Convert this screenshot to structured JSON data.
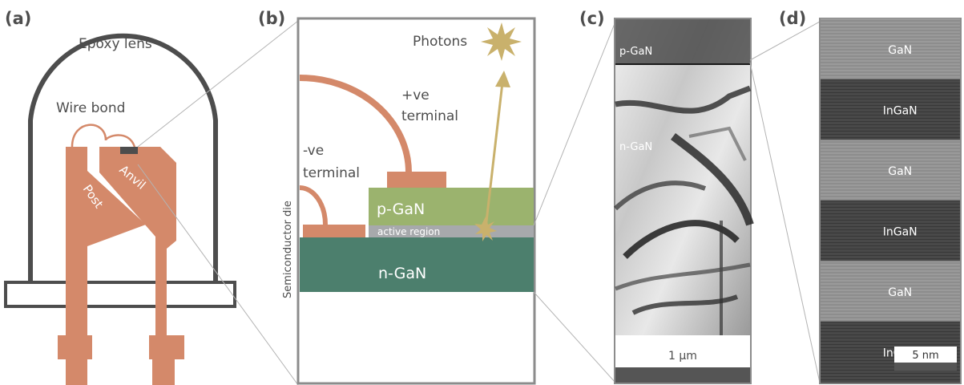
{
  "panel_labels": {
    "a": "(a)",
    "b": "(b)",
    "c": "(c)",
    "d": "(d)"
  },
  "panel_a": {
    "epoxy_lens": "Epoxy lens",
    "wire_bond": "Wire bond",
    "post": "Post",
    "anvil": "Anvil"
  },
  "panel_b": {
    "photons": "Photons",
    "pos_terminal_1": "+ve",
    "pos_terminal_2": "terminal",
    "neg_terminal_1": "-ve",
    "neg_terminal_2": "terminal",
    "p_gan": "p-GaN",
    "active_region": "active region",
    "n_gan": "n-GaN",
    "semiconductor_die": "Semiconductor die"
  },
  "panel_c": {
    "p_gan": "p-GaN",
    "n_gan": "n-GaN",
    "scale_bar": "1 µm"
  },
  "panel_d": {
    "layers": [
      "GaN",
      "InGaN",
      "GaN",
      "InGaN",
      "GaN",
      "InGaN"
    ],
    "scale_bar": "5 nm"
  },
  "colors": {
    "copper": "#d4896a",
    "p_gan": "#9bb36e",
    "n_gan": "#4c7f6d",
    "active": "#a7a9ac",
    "photon": "#c9b16c",
    "outline": "#4d4d4d",
    "frame": "#8c8c8c"
  }
}
